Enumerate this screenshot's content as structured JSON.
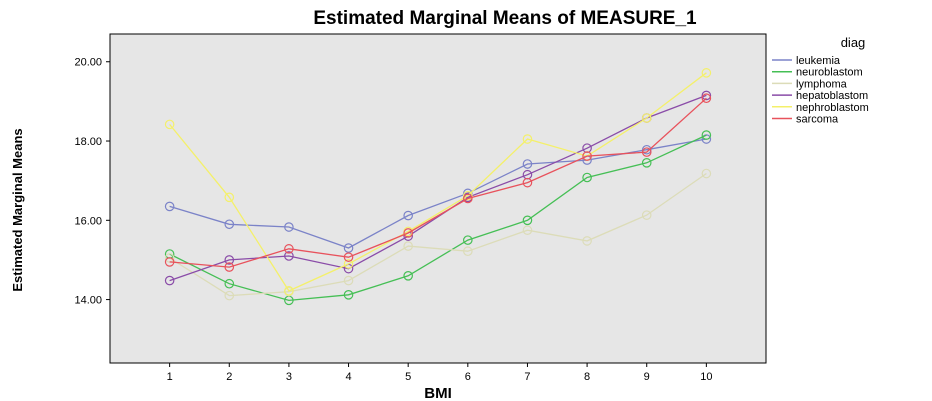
{
  "chart_data": {
    "type": "line",
    "title": "Estimated Marginal Means of MEASURE_1",
    "xlabel": "BMI",
    "ylabel": "Estimated Marginal Means",
    "x": [
      1,
      2,
      3,
      4,
      5,
      6,
      7,
      8,
      9,
      10
    ],
    "x_tick_labels": [
      "1",
      "2",
      "3",
      "4",
      "5",
      "6",
      "7",
      "8",
      "9",
      "10"
    ],
    "y_tick_labels": [
      "14.00",
      "16.00",
      "18.00",
      "20.00"
    ],
    "y_ticks": [
      14,
      16,
      18,
      20
    ],
    "ylim": [
      12.4,
      20.7
    ],
    "xlim": [
      0,
      11
    ],
    "grid": false,
    "plot_background": "#e6e6e6",
    "legend": {
      "title": "diag",
      "placement": "right"
    },
    "series": [
      {
        "name": "leukemia",
        "color": "#7b83c8",
        "values": [
          16.35,
          15.9,
          15.83,
          15.3,
          16.12,
          16.68,
          17.42,
          17.52,
          17.78,
          18.05
        ]
      },
      {
        "name": "neuroblastom",
        "color": "#45bf55",
        "values": [
          15.15,
          14.4,
          13.98,
          14.12,
          14.6,
          15.5,
          16.0,
          17.08,
          17.45,
          18.15
        ]
      },
      {
        "name": "lymphoma",
        "color": "#dcdcb8",
        "values": [
          15.05,
          14.1,
          14.2,
          14.48,
          15.35,
          15.22,
          15.75,
          15.48,
          16.13,
          17.18
        ]
      },
      {
        "name": "hepatoblastom",
        "color": "#8a4ca8",
        "values": [
          14.48,
          15.0,
          15.1,
          14.78,
          15.6,
          16.58,
          17.15,
          17.82,
          18.58,
          19.15
        ]
      },
      {
        "name": "nephroblastom",
        "color": "#f4f06a",
        "values": [
          18.42,
          16.58,
          14.22,
          14.9,
          15.72,
          16.62,
          18.05,
          17.62,
          18.58,
          19.72
        ]
      },
      {
        "name": "sarcoma",
        "color": "#e8525c",
        "values": [
          14.95,
          14.82,
          15.28,
          15.07,
          15.68,
          16.55,
          16.95,
          17.62,
          17.72,
          19.08
        ]
      }
    ]
  }
}
